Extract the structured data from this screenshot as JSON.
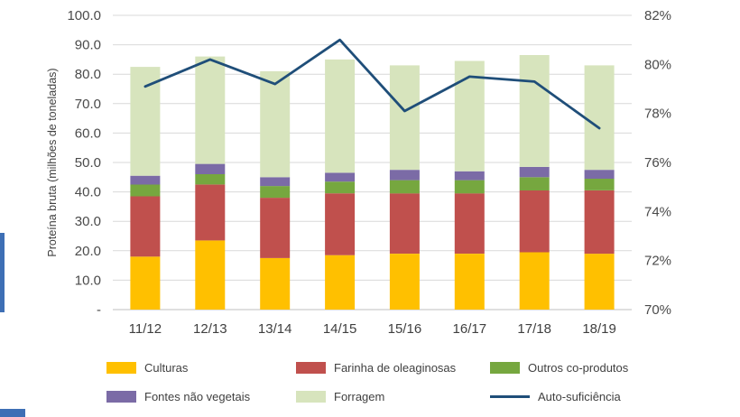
{
  "page": {
    "background": "#ffffff"
  },
  "chart_data": {
    "type": "bar",
    "subtype": "stacked-bar-with-line",
    "title": "",
    "categories": [
      "11/12",
      "12/13",
      "13/14",
      "14/15",
      "15/16",
      "16/17",
      "17/18",
      "18/19"
    ],
    "bar_series": [
      {
        "name": "Culturas",
        "color": "#FFC000",
        "values": [
          18.0,
          23.5,
          17.5,
          18.5,
          19.0,
          19.0,
          19.5,
          19.0
        ]
      },
      {
        "name": "Farinha de oleaginosas",
        "color": "#C0504D",
        "values": [
          20.5,
          19.0,
          20.5,
          21.0,
          20.5,
          20.5,
          21.0,
          21.5
        ]
      },
      {
        "name": "Outros co-produtos",
        "color": "#76A73F",
        "values": [
          4.0,
          3.5,
          4.0,
          4.0,
          4.5,
          4.5,
          4.5,
          4.0
        ]
      },
      {
        "name": "Fontes não vegetais",
        "color": "#7B6BA6",
        "values": [
          3.0,
          3.5,
          3.0,
          3.0,
          3.5,
          3.0,
          3.5,
          3.0
        ]
      },
      {
        "name": "Forragem",
        "color": "#D7E4BD",
        "values": [
          37.0,
          36.5,
          36.0,
          38.5,
          35.5,
          37.5,
          38.0,
          35.5
        ]
      }
    ],
    "line_series": {
      "name": "Auto-suficiência",
      "color": "#1F4E79",
      "values": [
        79.1,
        80.2,
        79.2,
        81.0,
        78.1,
        79.5,
        79.3,
        77.4
      ],
      "axis": "right",
      "unit": "%"
    },
    "left_axis": {
      "title": "Proteína bruta (milhões de toneladas)",
      "min": 0,
      "max": 100,
      "tick_step": 10,
      "tick_labels": [
        "-",
        "10.0",
        "20.0",
        "30.0",
        "40.0",
        "50.0",
        "60.0",
        "70.0",
        "80.0",
        "90.0",
        "100.0"
      ]
    },
    "right_axis": {
      "min": 70,
      "max": 82,
      "tick_step": 2,
      "tick_labels": [
        "70%",
        "72%",
        "74%",
        "76%",
        "78%",
        "80%",
        "82%"
      ]
    },
    "grid": true,
    "gridline_color": "#D9D9D9",
    "baseline_color": "#BFBFBF",
    "legend_position": "bottom",
    "legend": [
      {
        "label": "Culturas",
        "swatch": "square",
        "color": "#FFC000"
      },
      {
        "label": "Farinha de oleaginosas",
        "swatch": "square",
        "color": "#C0504D"
      },
      {
        "label": "Outros co-produtos",
        "swatch": "square",
        "color": "#76A73F"
      },
      {
        "label": "Fontes não vegetais",
        "swatch": "square",
        "color": "#7B6BA6"
      },
      {
        "label": "Forragem",
        "swatch": "square",
        "color": "#D7E4BD"
      },
      {
        "label": "Auto-suficiência",
        "swatch": "line",
        "color": "#1F4E79"
      }
    ]
  }
}
